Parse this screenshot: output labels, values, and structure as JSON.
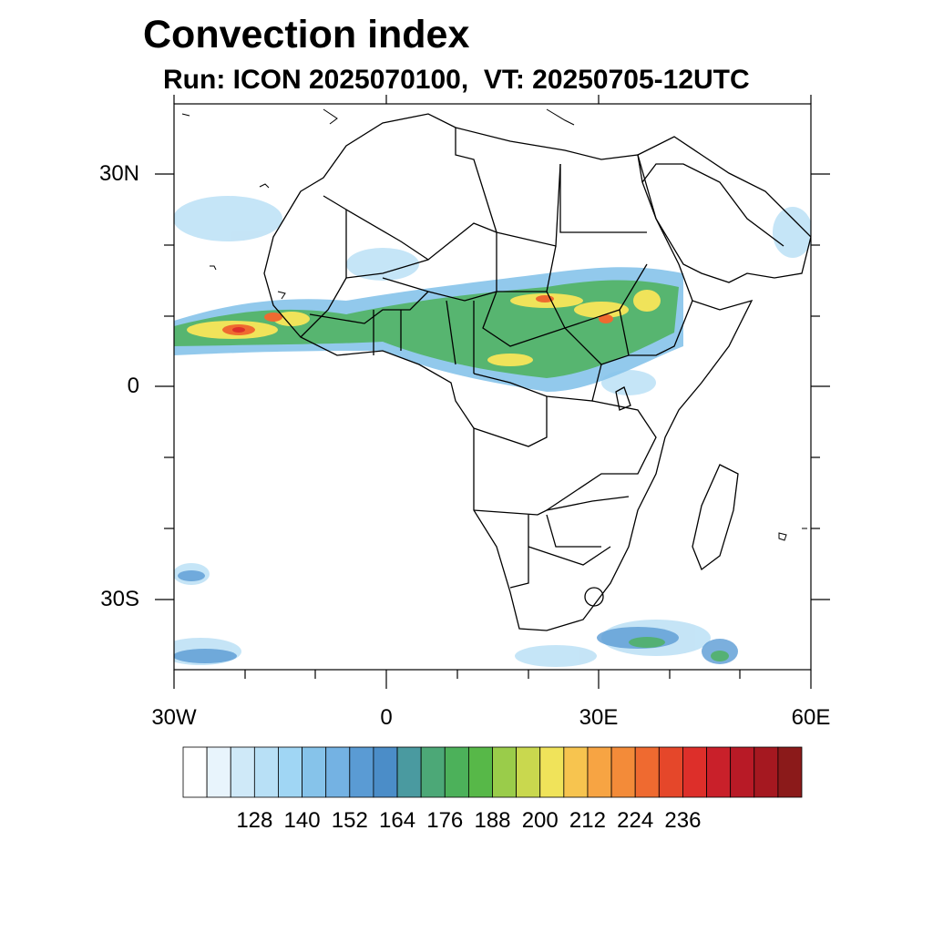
{
  "title": "Convection index",
  "subtitle": "Run: ICON 2025070100,  VT: 20250705-12UTC",
  "map": {
    "lon_range": [
      -30,
      60
    ],
    "lat_range": [
      -40,
      40
    ],
    "y_ticks": [
      {
        "value": 30,
        "label": "30N"
      },
      {
        "value": 0,
        "label": "0"
      },
      {
        "value": -30,
        "label": "30S"
      }
    ],
    "x_ticks": [
      {
        "value": -30,
        "label": "30W"
      },
      {
        "value": 0,
        "label": "0"
      },
      {
        "value": 30,
        "label": "30E"
      },
      {
        "value": 60,
        "label": "60E"
      }
    ]
  },
  "colorbar": {
    "colors": [
      "#ffffff",
      "#e8f4fc",
      "#cfe9f8",
      "#b8e0f6",
      "#a0d6f4",
      "#86c3ea",
      "#74b2e3",
      "#5a9bd4",
      "#4b8dc8",
      "#4a9aa0",
      "#4ca877",
      "#4cb15a",
      "#57b848",
      "#9acc4a",
      "#c9d84e",
      "#f0e35a",
      "#f7c44f",
      "#f7a443",
      "#f38b39",
      "#ef6a30",
      "#e5472a",
      "#dd2f2a",
      "#c9202a",
      "#b81a26",
      "#a51820",
      "#8b1a1a"
    ],
    "labels": [
      "128",
      "140",
      "152",
      "164",
      "176",
      "188",
      "200",
      "212",
      "224",
      "236"
    ]
  }
}
